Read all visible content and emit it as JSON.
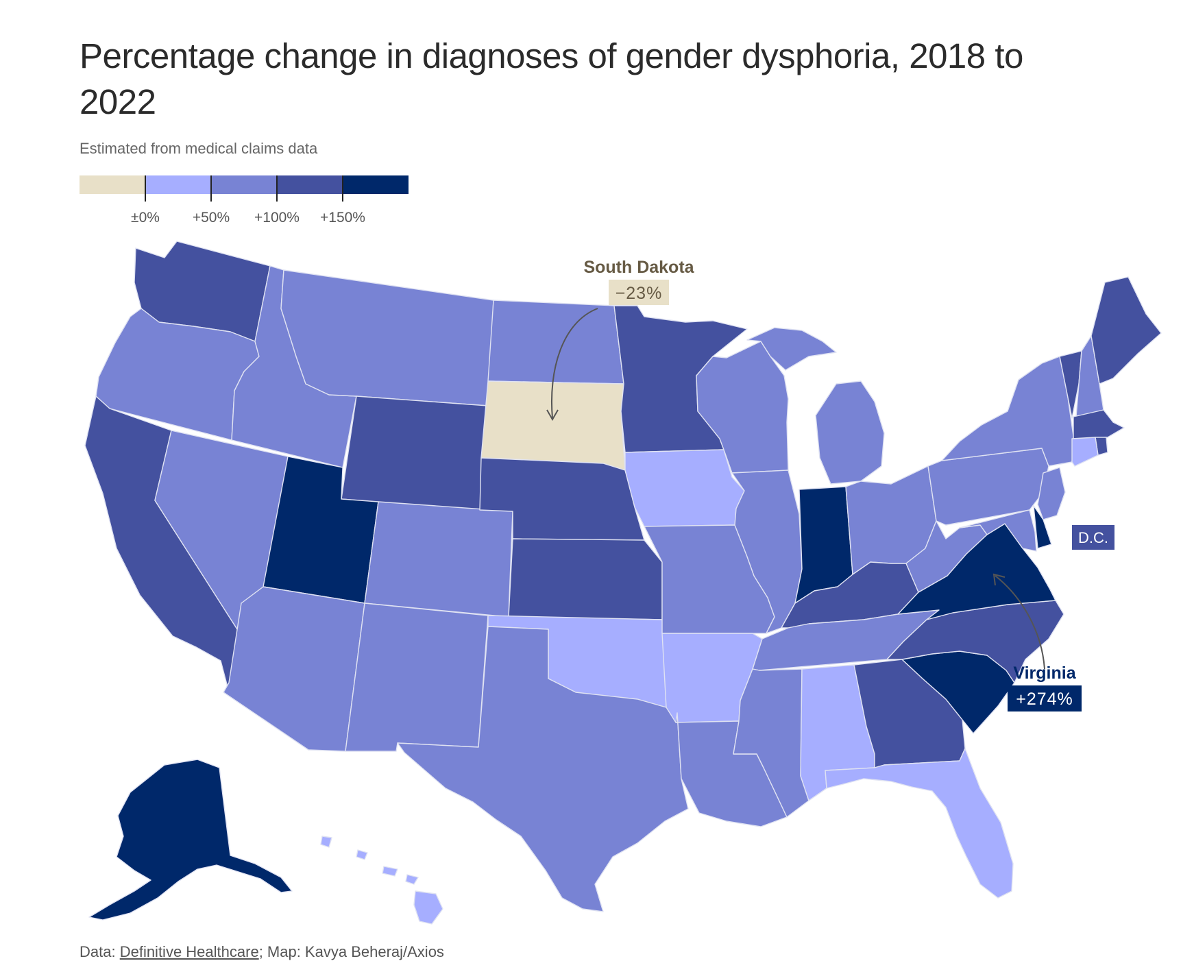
{
  "header": {
    "title": "Percentage change in diagnoses of gender dysphoria, 2018 to 2022",
    "subtitle": "Estimated from medical claims data"
  },
  "legend": {
    "colors": [
      "#e8e0c8",
      "#a6aeff",
      "#7883d4",
      "#44519f",
      "#00286a"
    ],
    "ticks": [
      "±0%",
      "+50%",
      "+100%",
      "+150%"
    ],
    "bins": [
      {
        "label": "below 0%",
        "color": "#e8e0c8"
      },
      {
        "label": "0% to 50%",
        "color": "#a6aeff"
      },
      {
        "label": "50% to 100%",
        "color": "#7883d4"
      },
      {
        "label": "100% to 150%",
        "color": "#44519f"
      },
      {
        "label": "150% and up",
        "color": "#00286a"
      }
    ]
  },
  "map_data": {
    "states": [
      {
        "id": "WA",
        "bin": 3
      },
      {
        "id": "OR",
        "bin": 2
      },
      {
        "id": "CA",
        "bin": 3
      },
      {
        "id": "ID",
        "bin": 2
      },
      {
        "id": "NV",
        "bin": 2
      },
      {
        "id": "MT",
        "bin": 2
      },
      {
        "id": "WY",
        "bin": 3
      },
      {
        "id": "UT",
        "bin": 4
      },
      {
        "id": "AZ",
        "bin": 2
      },
      {
        "id": "CO",
        "bin": 2
      },
      {
        "id": "NM",
        "bin": 2
      },
      {
        "id": "ND",
        "bin": 2
      },
      {
        "id": "SD",
        "bin": 0
      },
      {
        "id": "NE",
        "bin": 3
      },
      {
        "id": "KS",
        "bin": 3
      },
      {
        "id": "OK",
        "bin": 1
      },
      {
        "id": "TX",
        "bin": 2
      },
      {
        "id": "MN",
        "bin": 3
      },
      {
        "id": "IA",
        "bin": 1
      },
      {
        "id": "MO",
        "bin": 2
      },
      {
        "id": "AR",
        "bin": 1
      },
      {
        "id": "LA",
        "bin": 2
      },
      {
        "id": "WI",
        "bin": 2
      },
      {
        "id": "IL",
        "bin": 2
      },
      {
        "id": "MI",
        "bin": 2
      },
      {
        "id": "IN",
        "bin": 4
      },
      {
        "id": "OH",
        "bin": 2
      },
      {
        "id": "KY",
        "bin": 3
      },
      {
        "id": "TN",
        "bin": 2
      },
      {
        "id": "MS",
        "bin": 2
      },
      {
        "id": "AL",
        "bin": 1
      },
      {
        "id": "GA",
        "bin": 3
      },
      {
        "id": "FL",
        "bin": 1
      },
      {
        "id": "SC",
        "bin": 4
      },
      {
        "id": "NC",
        "bin": 3
      },
      {
        "id": "VA",
        "bin": 4
      },
      {
        "id": "WV",
        "bin": 2
      },
      {
        "id": "PA",
        "bin": 2
      },
      {
        "id": "NY",
        "bin": 2
      },
      {
        "id": "VT",
        "bin": 3
      },
      {
        "id": "NH",
        "bin": 2
      },
      {
        "id": "ME",
        "bin": 3
      },
      {
        "id": "MA",
        "bin": 3
      },
      {
        "id": "RI",
        "bin": 3
      },
      {
        "id": "CT",
        "bin": 1
      },
      {
        "id": "NJ",
        "bin": 2
      },
      {
        "id": "DE",
        "bin": 4
      },
      {
        "id": "MD",
        "bin": 2
      },
      {
        "id": "AK",
        "bin": 4
      },
      {
        "id": "HI",
        "bin": 1
      }
    ]
  },
  "callouts": {
    "south_dakota": {
      "name": "South Dakota",
      "value": "−23%",
      "color": "#665a44",
      "bg": "#e8e0c8"
    },
    "virginia": {
      "name": "Virginia",
      "value": "+274%",
      "color": "#00286a",
      "bg": "#00286a"
    },
    "dc": {
      "label": "D.C.",
      "bg": "#44519f"
    }
  },
  "footer": {
    "prefix": "Data: ",
    "source_link": "Definitive Healthcare",
    "suffix": "; Map: Kavya Beheraj/Axios"
  }
}
